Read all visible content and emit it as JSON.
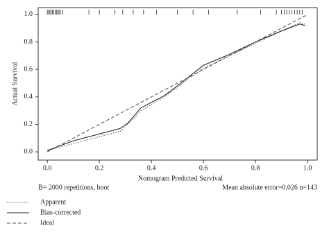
{
  "chart_data": {
    "type": "line",
    "x_label": "Nomogram Predicted Survival",
    "y_label": "Actual Survival",
    "xlim": [
      -0.035,
      1.037
    ],
    "ylim": [
      -0.06,
      1.05
    ],
    "xticks": [
      {
        "value": 0,
        "label": "0.0"
      },
      {
        "value": 0.2,
        "label": "0.2"
      },
      {
        "value": 0.4,
        "label": "0.4"
      },
      {
        "value": 0.6,
        "label": "0.6"
      },
      {
        "value": 0.8,
        "label": "0.8"
      },
      {
        "value": 1,
        "label": "1.0"
      }
    ],
    "yticks": [
      {
        "value": 0,
        "label": "0.0"
      },
      {
        "value": 0.2,
        "label": "0.2"
      },
      {
        "value": 0.4,
        "label": "0.4"
      },
      {
        "value": 0.6,
        "label": "0.6"
      },
      {
        "value": 0.8,
        "label": "0.8"
      },
      {
        "value": 1,
        "label": "1.0"
      }
    ],
    "series": [
      {
        "name": "Apparent",
        "color": "#555555",
        "dash": "1.5,2",
        "x": [
          0.0,
          0.1,
          0.2,
          0.28,
          0.32,
          0.36,
          0.45,
          0.5,
          0.6,
          0.7,
          0.8,
          0.9,
          0.97,
          0.99
        ],
        "values": [
          0.01,
          0.06,
          0.11,
          0.15,
          0.22,
          0.3,
          0.4,
          0.47,
          0.61,
          0.7,
          0.79,
          0.88,
          0.94,
          0.93
        ]
      },
      {
        "name": "Bias-corrected",
        "color": "#222222",
        "dash": "none",
        "x": [
          0.0,
          0.1,
          0.2,
          0.28,
          0.31,
          0.36,
          0.45,
          0.5,
          0.6,
          0.7,
          0.8,
          0.9,
          0.97,
          0.99
        ],
        "values": [
          0.01,
          0.08,
          0.13,
          0.17,
          0.21,
          0.32,
          0.41,
          0.48,
          0.63,
          0.71,
          0.8,
          0.88,
          0.93,
          0.92
        ]
      },
      {
        "name": "Ideal",
        "color": "#555555",
        "dash": "5,3",
        "x": [
          0,
          1
        ],
        "values": [
          0,
          1
        ]
      }
    ],
    "rug": [
      0.0,
      0.005,
      0.01,
      0.015,
      0.02,
      0.025,
      0.03,
      0.035,
      0.04,
      0.045,
      0.05,
      0.06,
      0.16,
      0.2,
      0.26,
      0.29,
      0.33,
      0.37,
      0.42,
      0.5,
      0.56,
      0.62,
      0.73,
      0.82,
      0.88,
      0.9,
      0.91,
      0.92,
      0.93,
      0.94,
      0.95,
      0.96,
      0.97,
      0.98
    ],
    "footer_left": "B= 2000 repetitions, boot",
    "footer_right": "Mean absolute error=0.026 n=143"
  }
}
